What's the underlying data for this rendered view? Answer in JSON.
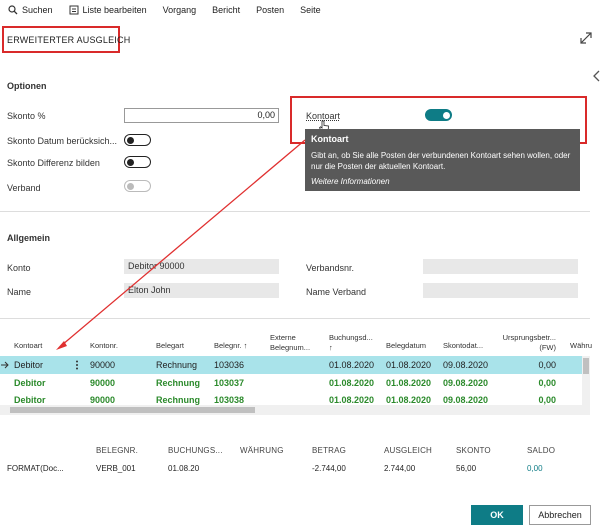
{
  "menu": [
    "Suchen",
    "Liste bearbeiten",
    "Vorgang",
    "Bericht",
    "Posten",
    "Seite"
  ],
  "title": "ERWEITERTER AUSGLEICH",
  "options": {
    "heading": "Optionen",
    "skonto_label": "Skonto %",
    "skonto_value": "0,00",
    "skonto_datum_label": "Skonto Datum berücksich...",
    "skonto_differenz_label": "Skonto Differenz bilden",
    "verband_label": "Verband",
    "kontoart_label": "Kontoart"
  },
  "tooltip": {
    "title": "Kontoart",
    "body": "Gibt an, ob Sie alle Posten der verbundenen Kontoart sehen wollen, oder nur die Posten der aktuellen Kontoart.",
    "more": "Weitere Informationen"
  },
  "general": {
    "heading": "Allgemein",
    "konto_label": "Konto",
    "konto_value": "Debitor 90000",
    "name_label": "Name",
    "name_value": "Elton John",
    "verbandsnr_label": "Verbandsnr.",
    "verbandsnr_value": "",
    "name_verband_label": "Name Verband",
    "name_verband_value": ""
  },
  "table": {
    "headers": {
      "kontoart": "Kontoart",
      "kontonr": "Kontonr.",
      "belegart": "Belegart",
      "belegnr": "Belegnr. ↑",
      "externe1": "Externe",
      "externe2": "Belegnum...",
      "buchungsd1": "Buchungsd...",
      "buchungsd2": "↑",
      "belegdatum": "Belegdatum",
      "skontodat": "Skontodat...",
      "ursprung1": "Ursprungsbetr...",
      "ursprung2": "(FW)",
      "wahrung": "Währu"
    },
    "rows": [
      {
        "kontoart": "Debitor",
        "kontonr": "90000",
        "belegart": "Rechnung",
        "belegnr": "103036",
        "buchungsd": "01.08.2020",
        "belegdatum": "01.08.2020",
        "skontodat": "09.08.2020",
        "betrag": "0,00"
      },
      {
        "kontoart": "Debitor",
        "kontonr": "90000",
        "belegart": "Rechnung",
        "belegnr": "103037",
        "buchungsd": "01.08.2020",
        "belegdatum": "01.08.2020",
        "skontodat": "09.08.2020",
        "betrag": "0,00"
      },
      {
        "kontoart": "Debitor",
        "kontonr": "90000",
        "belegart": "Rechnung",
        "belegnr": "103038",
        "buchungsd": "01.08.2020",
        "belegdatum": "01.08.2020",
        "skontodat": "09.08.2020",
        "betrag": "0,00"
      }
    ]
  },
  "summary": {
    "headers": [
      "BELEGNR.",
      "BUCHUNGS...",
      "WÄHRUNG",
      "BETRAG",
      "AUSGLEICH",
      "SKONTO",
      "SALDO"
    ],
    "label": "FORMAT(Doc...",
    "values": [
      "VERB_001",
      "01.08.20",
      "",
      "-2.744,00",
      "2.744,00",
      "56,00",
      "0,00"
    ]
  },
  "buttons": {
    "ok": "OK",
    "cancel": "Abbrechen"
  },
  "colors": {
    "accent": "#0e7c86",
    "highlight": "#d92a2a",
    "selected_row": "#a9e3ea",
    "green_text": "#2b8a2b"
  }
}
